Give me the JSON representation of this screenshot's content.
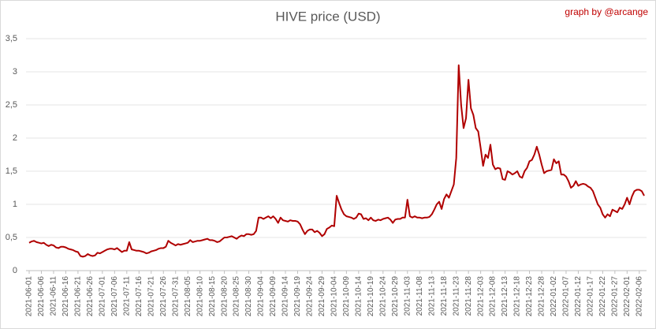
{
  "chart_data": {
    "type": "line",
    "title": "HIVE price (USD)",
    "annotation": "graph by @arcange",
    "color": "#b00000",
    "grid": true,
    "ylim": [
      0,
      3.5
    ],
    "yticks": [
      0,
      {
        "value": 0.5,
        "label": "0,5"
      },
      1,
      {
        "value": 1.5,
        "label": "1,5"
      },
      2,
      {
        "value": 2.5,
        "label": "2,5"
      },
      3,
      {
        "value": 3.5,
        "label": "3,5"
      }
    ],
    "categories": [
      "2021-06-01",
      null,
      null,
      null,
      null,
      "2021-06-06",
      null,
      null,
      null,
      null,
      "2021-06-11",
      null,
      null,
      null,
      null,
      "2021-06-16",
      null,
      null,
      null,
      null,
      "2021-06-21",
      null,
      null,
      null,
      null,
      "2021-06-26",
      null,
      null,
      null,
      null,
      "2021-07-01",
      null,
      null,
      null,
      null,
      "2021-07-06",
      null,
      null,
      null,
      null,
      "2021-07-11",
      null,
      null,
      null,
      null,
      "2021-07-16",
      null,
      null,
      null,
      null,
      "2021-07-21",
      null,
      null,
      null,
      null,
      "2021-07-26",
      null,
      null,
      null,
      null,
      "2021-07-31",
      null,
      null,
      null,
      null,
      "2021-08-05",
      null,
      null,
      null,
      null,
      "2021-08-10",
      null,
      null,
      null,
      null,
      "2021-08-15",
      null,
      null,
      null,
      null,
      "2021-08-20",
      null,
      null,
      null,
      null,
      "2021-08-25",
      null,
      null,
      null,
      null,
      "2021-08-30",
      null,
      null,
      null,
      null,
      "2021-09-04",
      null,
      null,
      null,
      null,
      "2021-09-09",
      null,
      null,
      null,
      null,
      "2021-09-14",
      null,
      null,
      null,
      null,
      "2021-09-19",
      null,
      null,
      null,
      null,
      "2021-09-24",
      null,
      null,
      null,
      null,
      "2021-09-29",
      null,
      null,
      null,
      null,
      "2021-10-04",
      null,
      null,
      null,
      null,
      "2021-10-09",
      null,
      null,
      null,
      null,
      "2021-10-14",
      null,
      null,
      null,
      null,
      "2021-10-19",
      null,
      null,
      null,
      null,
      "2021-10-24",
      null,
      null,
      null,
      null,
      "2021-10-29",
      null,
      null,
      null,
      null,
      "2021-11-03",
      null,
      null,
      null,
      null,
      "2021-11-08",
      null,
      null,
      null,
      null,
      "2021-11-13",
      null,
      null,
      null,
      null,
      "2021-11-18",
      null,
      null,
      null,
      null,
      "2021-11-23",
      null,
      null,
      null,
      null,
      "2021-11-28",
      null,
      null,
      null,
      null,
      "2021-12-03",
      null,
      null,
      null,
      null,
      "2021-12-08",
      null,
      null,
      null,
      null,
      "2021-12-13",
      null,
      null,
      null,
      null,
      "2021-12-18",
      null,
      null,
      null,
      null,
      "2021-12-23",
      null,
      null,
      null,
      null,
      "2021-12-28",
      null,
      null,
      null,
      null,
      "2022-01-02",
      null,
      null,
      null,
      null,
      "2022-01-07",
      null,
      null,
      null,
      null,
      "2022-01-12",
      null,
      null,
      null,
      null,
      "2022-01-17",
      null,
      null,
      null,
      null,
      "2022-01-22",
      null,
      null,
      null,
      null,
      "2022-01-27",
      null,
      null,
      null,
      null,
      "2022-02-01",
      null,
      null,
      null,
      null,
      "2022-02-06",
      null,
      null
    ],
    "values": [
      0.42,
      0.44,
      0.45,
      0.43,
      0.42,
      0.41,
      0.42,
      0.39,
      0.37,
      0.39,
      0.38,
      0.35,
      0.34,
      0.36,
      0.36,
      0.35,
      0.33,
      0.32,
      0.31,
      0.29,
      0.28,
      0.22,
      0.21,
      0.22,
      0.25,
      0.23,
      0.22,
      0.23,
      0.27,
      0.26,
      0.28,
      0.3,
      0.32,
      0.33,
      0.33,
      0.32,
      0.34,
      0.31,
      0.28,
      0.3,
      0.3,
      0.43,
      0.32,
      0.31,
      0.3,
      0.3,
      0.29,
      0.28,
      0.26,
      0.27,
      0.29,
      0.3,
      0.31,
      0.33,
      0.34,
      0.34,
      0.36,
      0.45,
      0.42,
      0.4,
      0.38,
      0.4,
      0.39,
      0.4,
      0.41,
      0.42,
      0.46,
      0.43,
      0.44,
      0.45,
      0.45,
      0.46,
      0.47,
      0.48,
      0.46,
      0.46,
      0.45,
      0.43,
      0.44,
      0.47,
      0.5,
      0.5,
      0.51,
      0.52,
      0.5,
      0.48,
      0.51,
      0.53,
      0.52,
      0.55,
      0.55,
      0.54,
      0.55,
      0.6,
      0.8,
      0.8,
      0.78,
      0.8,
      0.82,
      0.79,
      0.82,
      0.78,
      0.72,
      0.8,
      0.76,
      0.75,
      0.74,
      0.76,
      0.75,
      0.75,
      0.74,
      0.7,
      0.62,
      0.55,
      0.6,
      0.62,
      0.62,
      0.58,
      0.6,
      0.57,
      0.52,
      0.55,
      0.63,
      0.65,
      0.68,
      0.67,
      1.13,
      1.02,
      0.92,
      0.85,
      0.82,
      0.81,
      0.8,
      0.78,
      0.8,
      0.86,
      0.85,
      0.78,
      0.79,
      0.76,
      0.8,
      0.76,
      0.75,
      0.77,
      0.76,
      0.78,
      0.79,
      0.8,
      0.77,
      0.72,
      0.77,
      0.78,
      0.78,
      0.8,
      0.8,
      1.07,
      0.82,
      0.8,
      0.82,
      0.8,
      0.8,
      0.79,
      0.8,
      0.8,
      0.81,
      0.85,
      0.92,
      1.0,
      1.04,
      0.93,
      1.08,
      1.15,
      1.1,
      1.2,
      1.3,
      1.7,
      3.1,
      2.5,
      2.15,
      2.3,
      2.88,
      2.45,
      2.35,
      2.15,
      2.1,
      1.85,
      1.58,
      1.75,
      1.7,
      1.9,
      1.6,
      1.53,
      1.55,
      1.54,
      1.38,
      1.37,
      1.5,
      1.48,
      1.45,
      1.47,
      1.5,
      1.42,
      1.4,
      1.5,
      1.55,
      1.65,
      1.67,
      1.75,
      1.87,
      1.75,
      1.6,
      1.47,
      1.5,
      1.51,
      1.52,
      1.68,
      1.62,
      1.65,
      1.45,
      1.45,
      1.42,
      1.35,
      1.25,
      1.28,
      1.35,
      1.28,
      1.3,
      1.31,
      1.3,
      1.27,
      1.25,
      1.2,
      1.1,
      1.0,
      0.95,
      0.85,
      0.8,
      0.85,
      0.82,
      0.92,
      0.9,
      0.88,
      0.95,
      0.93,
      1.0,
      1.1,
      1.0,
      1.12,
      1.2,
      1.22,
      1.22,
      1.2,
      1.13
    ]
  }
}
